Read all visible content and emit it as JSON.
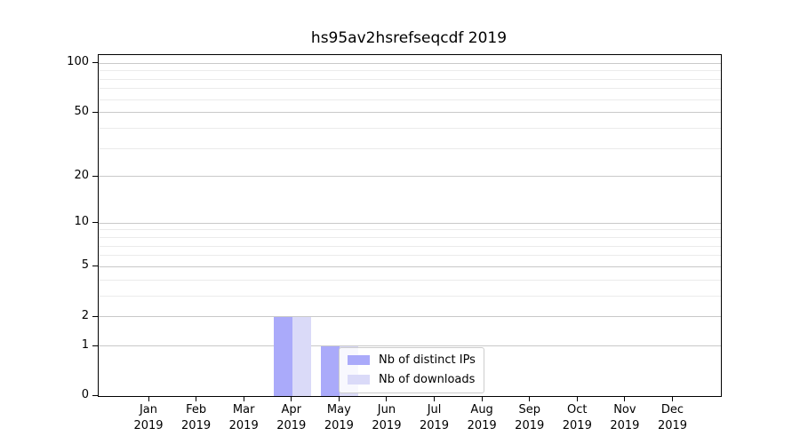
{
  "title": "hs95av2hsrefseqcdf 2019",
  "chart_data": {
    "type": "bar",
    "title": "hs95av2hsrefseqcdf 2019",
    "categories": [
      "Jan",
      "Feb",
      "Mar",
      "Apr",
      "May",
      "Jun",
      "Jul",
      "Aug",
      "Sep",
      "Oct",
      "Nov",
      "Dec"
    ],
    "x_year_label": "2019",
    "series": [
      {
        "name": "Nb of distinct IPs",
        "color": "#aaaafa",
        "values": [
          0,
          0,
          0,
          2,
          1,
          0,
          0,
          0,
          0,
          0,
          0,
          0
        ]
      },
      {
        "name": "Nb of downloads",
        "color": "#dadaf8",
        "values": [
          0,
          0,
          0,
          2,
          1,
          0,
          0,
          0,
          0,
          0,
          0,
          0
        ]
      }
    ],
    "yscale": "log1p",
    "ylim": [
      0,
      112
    ],
    "y_major_ticks": [
      0,
      1,
      2,
      5,
      10,
      20,
      50,
      100
    ],
    "y_minor_ticks": [
      3,
      4,
      6,
      7,
      8,
      9,
      30,
      40,
      60,
      70,
      80,
      90
    ],
    "grid": "both",
    "legend": {
      "position": "inside-lower-center",
      "items": [
        "Nb of distinct IPs",
        "Nb of downloads"
      ]
    },
    "colors": {
      "background": "#ffffff",
      "axis": "#000000",
      "text": "#000000",
      "grid_major": "#c9c9c9",
      "grid_minor": "#ebebeb",
      "legend_border": "#cccccc"
    }
  }
}
